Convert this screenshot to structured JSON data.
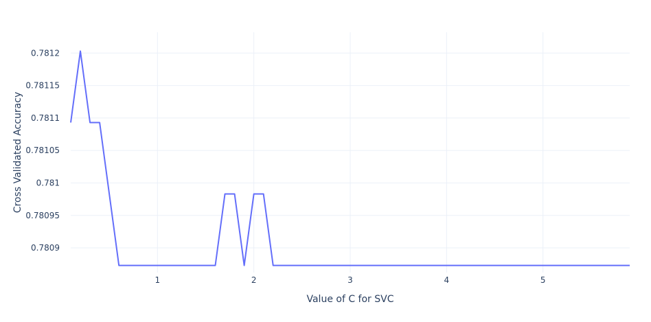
{
  "chart_data": {
    "type": "line",
    "title": "",
    "xlabel": "Value of C for SVC",
    "ylabel": "Cross Validated Accuracy",
    "xlim": [
      0.1,
      5.9
    ],
    "ylim": [
      0.780862,
      0.781232
    ],
    "x_ticks": [
      1,
      2,
      3,
      4,
      5
    ],
    "x_tick_labels": [
      "1",
      "2",
      "3",
      "4",
      "5"
    ],
    "y_ticks": [
      0.7809,
      0.78095,
      0.781,
      0.78105,
      0.7811,
      0.78115,
      0.7812
    ],
    "y_tick_labels": [
      "0.7809",
      "0.78095",
      "0.781",
      "0.78105",
      "0.7811",
      "0.78115",
      "0.7812"
    ],
    "grid": true,
    "color": "#636efa",
    "series": [
      {
        "x": [
          0.1,
          0.2,
          0.3,
          0.4,
          0.5,
          0.6,
          0.7,
          0.8,
          0.9,
          1.0,
          1.1,
          1.2,
          1.3,
          1.4,
          1.5,
          1.6,
          1.7,
          1.8,
          1.9,
          2.0,
          2.1,
          2.2,
          2.3,
          2.4,
          2.5,
          2.6,
          2.7,
          2.8,
          2.9,
          3.0,
          3.1,
          3.2,
          3.3,
          3.4,
          3.5,
          3.6,
          3.7,
          3.8,
          3.9,
          4.0,
          4.1,
          4.2,
          4.3,
          4.4,
          4.5,
          4.6,
          4.7,
          4.8,
          4.9,
          5.0,
          5.1,
          5.2,
          5.3,
          5.4,
          5.5,
          5.6,
          5.7,
          5.8,
          5.9
        ],
        "values": [
          0.781093,
          0.781203,
          0.781093,
          0.781093,
          0.780983,
          0.780873,
          0.780873,
          0.780873,
          0.780873,
          0.780873,
          0.780873,
          0.780873,
          0.780873,
          0.780873,
          0.780873,
          0.780873,
          0.780983,
          0.780983,
          0.780873,
          0.780983,
          0.780983,
          0.780873,
          0.780873,
          0.780873,
          0.780873,
          0.780873,
          0.780873,
          0.780873,
          0.780873,
          0.780873,
          0.780873,
          0.780873,
          0.780873,
          0.780873,
          0.780873,
          0.780873,
          0.780873,
          0.780873,
          0.780873,
          0.780873,
          0.780873,
          0.780873,
          0.780873,
          0.780873,
          0.780873,
          0.780873,
          0.780873,
          0.780873,
          0.780873,
          0.780873,
          0.780873,
          0.780873,
          0.780873,
          0.780873,
          0.780873,
          0.780873,
          0.780873,
          0.780873,
          0.780873
        ]
      }
    ]
  }
}
